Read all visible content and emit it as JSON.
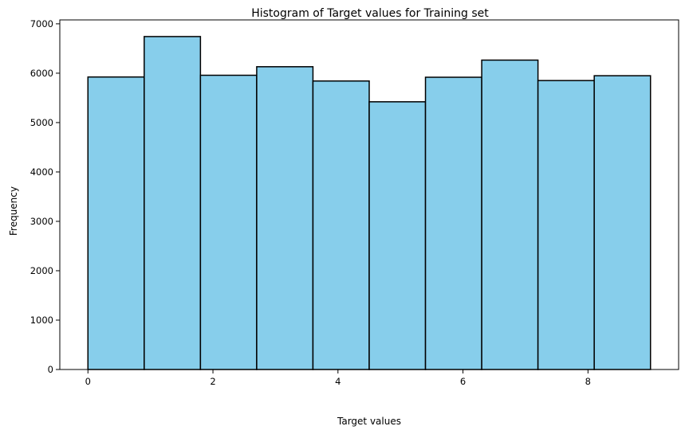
{
  "chart_data": {
    "type": "bar",
    "title": "Histogram of Target values for Training set",
    "xlabel": "Target values",
    "ylabel": "Frequency",
    "bins": [
      {
        "start": 0.0,
        "end": 0.9,
        "count": 5923
      },
      {
        "start": 0.9,
        "end": 1.8,
        "count": 6742
      },
      {
        "start": 1.8,
        "end": 2.7,
        "count": 5958
      },
      {
        "start": 2.7,
        "end": 3.6,
        "count": 6131
      },
      {
        "start": 3.6,
        "end": 4.5,
        "count": 5842
      },
      {
        "start": 4.5,
        "end": 5.4,
        "count": 5421
      },
      {
        "start": 5.4,
        "end": 6.3,
        "count": 5918
      },
      {
        "start": 6.3,
        "end": 7.2,
        "count": 6265
      },
      {
        "start": 7.2,
        "end": 8.1,
        "count": 5851
      },
      {
        "start": 8.1,
        "end": 9.0,
        "count": 5949
      }
    ],
    "xlim": [
      -0.45,
      9.45
    ],
    "ylim": [
      0,
      7079
    ],
    "xticks": [
      0,
      2,
      4,
      6,
      8
    ],
    "xtick_labels": [
      "0",
      "2",
      "4",
      "6",
      "8"
    ],
    "yticks": [
      0,
      1000,
      2000,
      3000,
      4000,
      5000,
      6000,
      7000
    ],
    "ytick_labels": [
      "0",
      "1000",
      "2000",
      "3000",
      "4000",
      "5000",
      "6000",
      "7000"
    ],
    "bar_color": "#87CEEB",
    "edge_color": "#000000",
    "grid": false,
    "legend": "none"
  }
}
